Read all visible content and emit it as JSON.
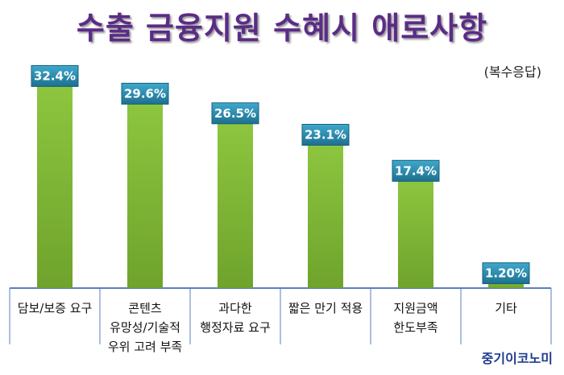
{
  "chart_data": {
    "type": "bar",
    "title": "수출 금융지원 수혜시 애로사항",
    "subtitle": "(복수응답)",
    "categories": [
      [
        "담보/보증 요구"
      ],
      [
        "콘텐츠",
        "유망성/기술적",
        "우위 고려 부족"
      ],
      [
        "과다한",
        "행정자료 요구"
      ],
      [
        "짧은 만기 적용"
      ],
      [
        "지원금액",
        "한도부족"
      ],
      [
        "기타"
      ]
    ],
    "values": [
      32.4,
      29.6,
      26.5,
      23.1,
      17.4,
      1.2
    ],
    "value_labels": [
      "32.4%",
      "29.6%",
      "26.5%",
      "23.1%",
      "17.4%",
      "1.20%"
    ],
    "ylim": [
      0,
      35
    ],
    "grid": false,
    "colors": {
      "bar": "#8dc63f",
      "bar_dark": "#6fa32c",
      "label_box": "#2a8fb0",
      "title": "#5b2c86"
    }
  },
  "credit": "중기이코노미"
}
